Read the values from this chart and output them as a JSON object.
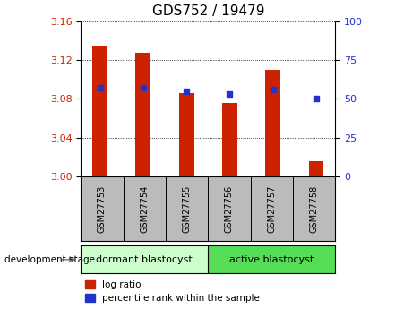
{
  "title": "GDS752 / 19479",
  "samples": [
    "GSM27753",
    "GSM27754",
    "GSM27755",
    "GSM27756",
    "GSM27757",
    "GSM27758"
  ],
  "log_ratio": [
    3.135,
    3.128,
    3.086,
    3.076,
    3.11,
    3.015
  ],
  "percentile_rank": [
    57,
    57,
    55,
    53,
    56,
    50
  ],
  "ylim_left": [
    3.0,
    3.16
  ],
  "ylim_right": [
    0,
    100
  ],
  "yticks_left": [
    3.0,
    3.04,
    3.08,
    3.12,
    3.16
  ],
  "yticks_right": [
    0,
    25,
    50,
    75,
    100
  ],
  "bar_color": "#cc2200",
  "dot_color": "#2233cc",
  "bg_color_dormant": "#ccffcc",
  "bg_color_active": "#55dd55",
  "label_bg_color": "#bbbbbb",
  "label_dormant": "dormant blastocyst",
  "label_active": "active blastocyst",
  "dev_stage_label": "development stage",
  "legend_log_ratio": "log ratio",
  "legend_percentile": "percentile rank within the sample",
  "title_fontsize": 11,
  "tick_fontsize": 8,
  "bar_width": 0.35
}
